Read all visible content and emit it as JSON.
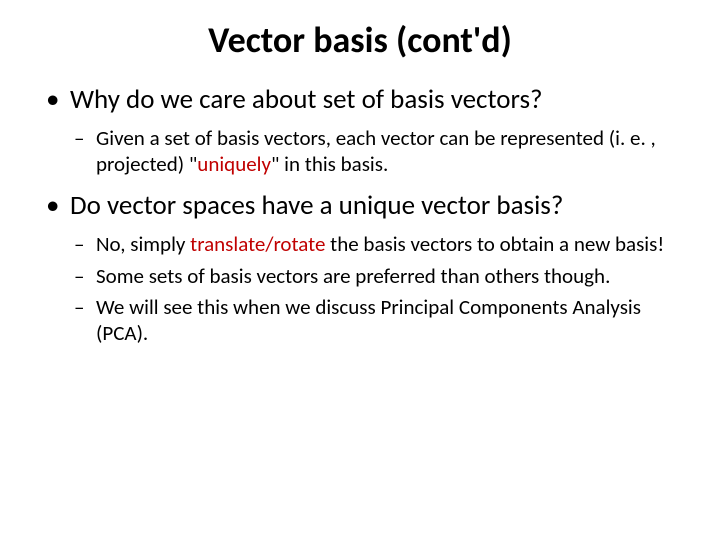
{
  "title": "Vector basis (cont'd)",
  "bullets": [
    {
      "text": "Why do we care about set of basis vectors?",
      "children": [
        {
          "pre": "Given a set of basis vectors, each vector can be represented (i. e. , projected) \"",
          "accent": "uniquely",
          "post": "\" in this basis."
        }
      ]
    },
    {
      "text": "Do vector spaces have a unique vector basis?",
      "children": [
        {
          "pre": "No, simply ",
          "accent": "translate/rotate",
          "post": " the basis vectors to obtain a new basis!"
        },
        {
          "pre": "Some sets of basis vectors are preferred than others though.",
          "accent": "",
          "post": ""
        },
        {
          "pre": "We will see this when we discuss Principal Components Analysis (PCA).",
          "accent": "",
          "post": ""
        }
      ]
    }
  ],
  "colors": {
    "text": "#000000",
    "accent": "#c00000",
    "background": "#ffffff"
  }
}
